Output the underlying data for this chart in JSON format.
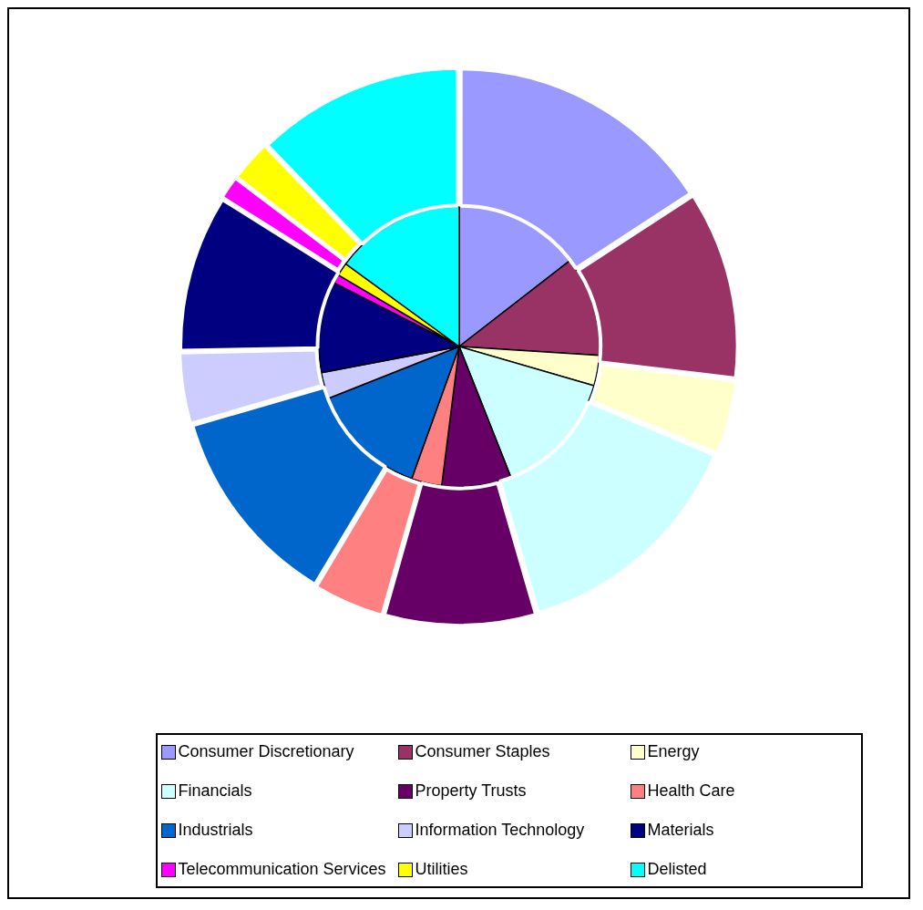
{
  "chart_data": {
    "type": "pie",
    "categories": [
      "Consumer Discretionary",
      "Consumer Staples",
      "Energy",
      "Financials",
      "Property Trusts",
      "Health Care",
      "Industrials",
      "Information Technology",
      "Materials",
      "Telecommunication Services",
      "Utilities",
      "Delisted"
    ],
    "colors": [
      "#9999ff",
      "#993366",
      "#ffffcc",
      "#ccffff",
      "#660066",
      "#ff8080",
      "#0066cc",
      "#ccccff",
      "#000080",
      "#ff00ff",
      "#ffff00",
      "#00ffff"
    ],
    "series": [
      {
        "values": [
          15.8,
          11.1,
          4.4,
          14.2,
          8.9,
          4.2,
          11.9,
          4.2,
          9.2,
          1.4,
          2.5,
          12.2
        ]
      },
      {
        "values": [
          14.5,
          11.5,
          3.5,
          14.5,
          8.0,
          3.5,
          13.5,
          3.0,
          10.5,
          1.0,
          1.5,
          15.0
        ]
      }
    ],
    "legend": "bottom"
  }
}
